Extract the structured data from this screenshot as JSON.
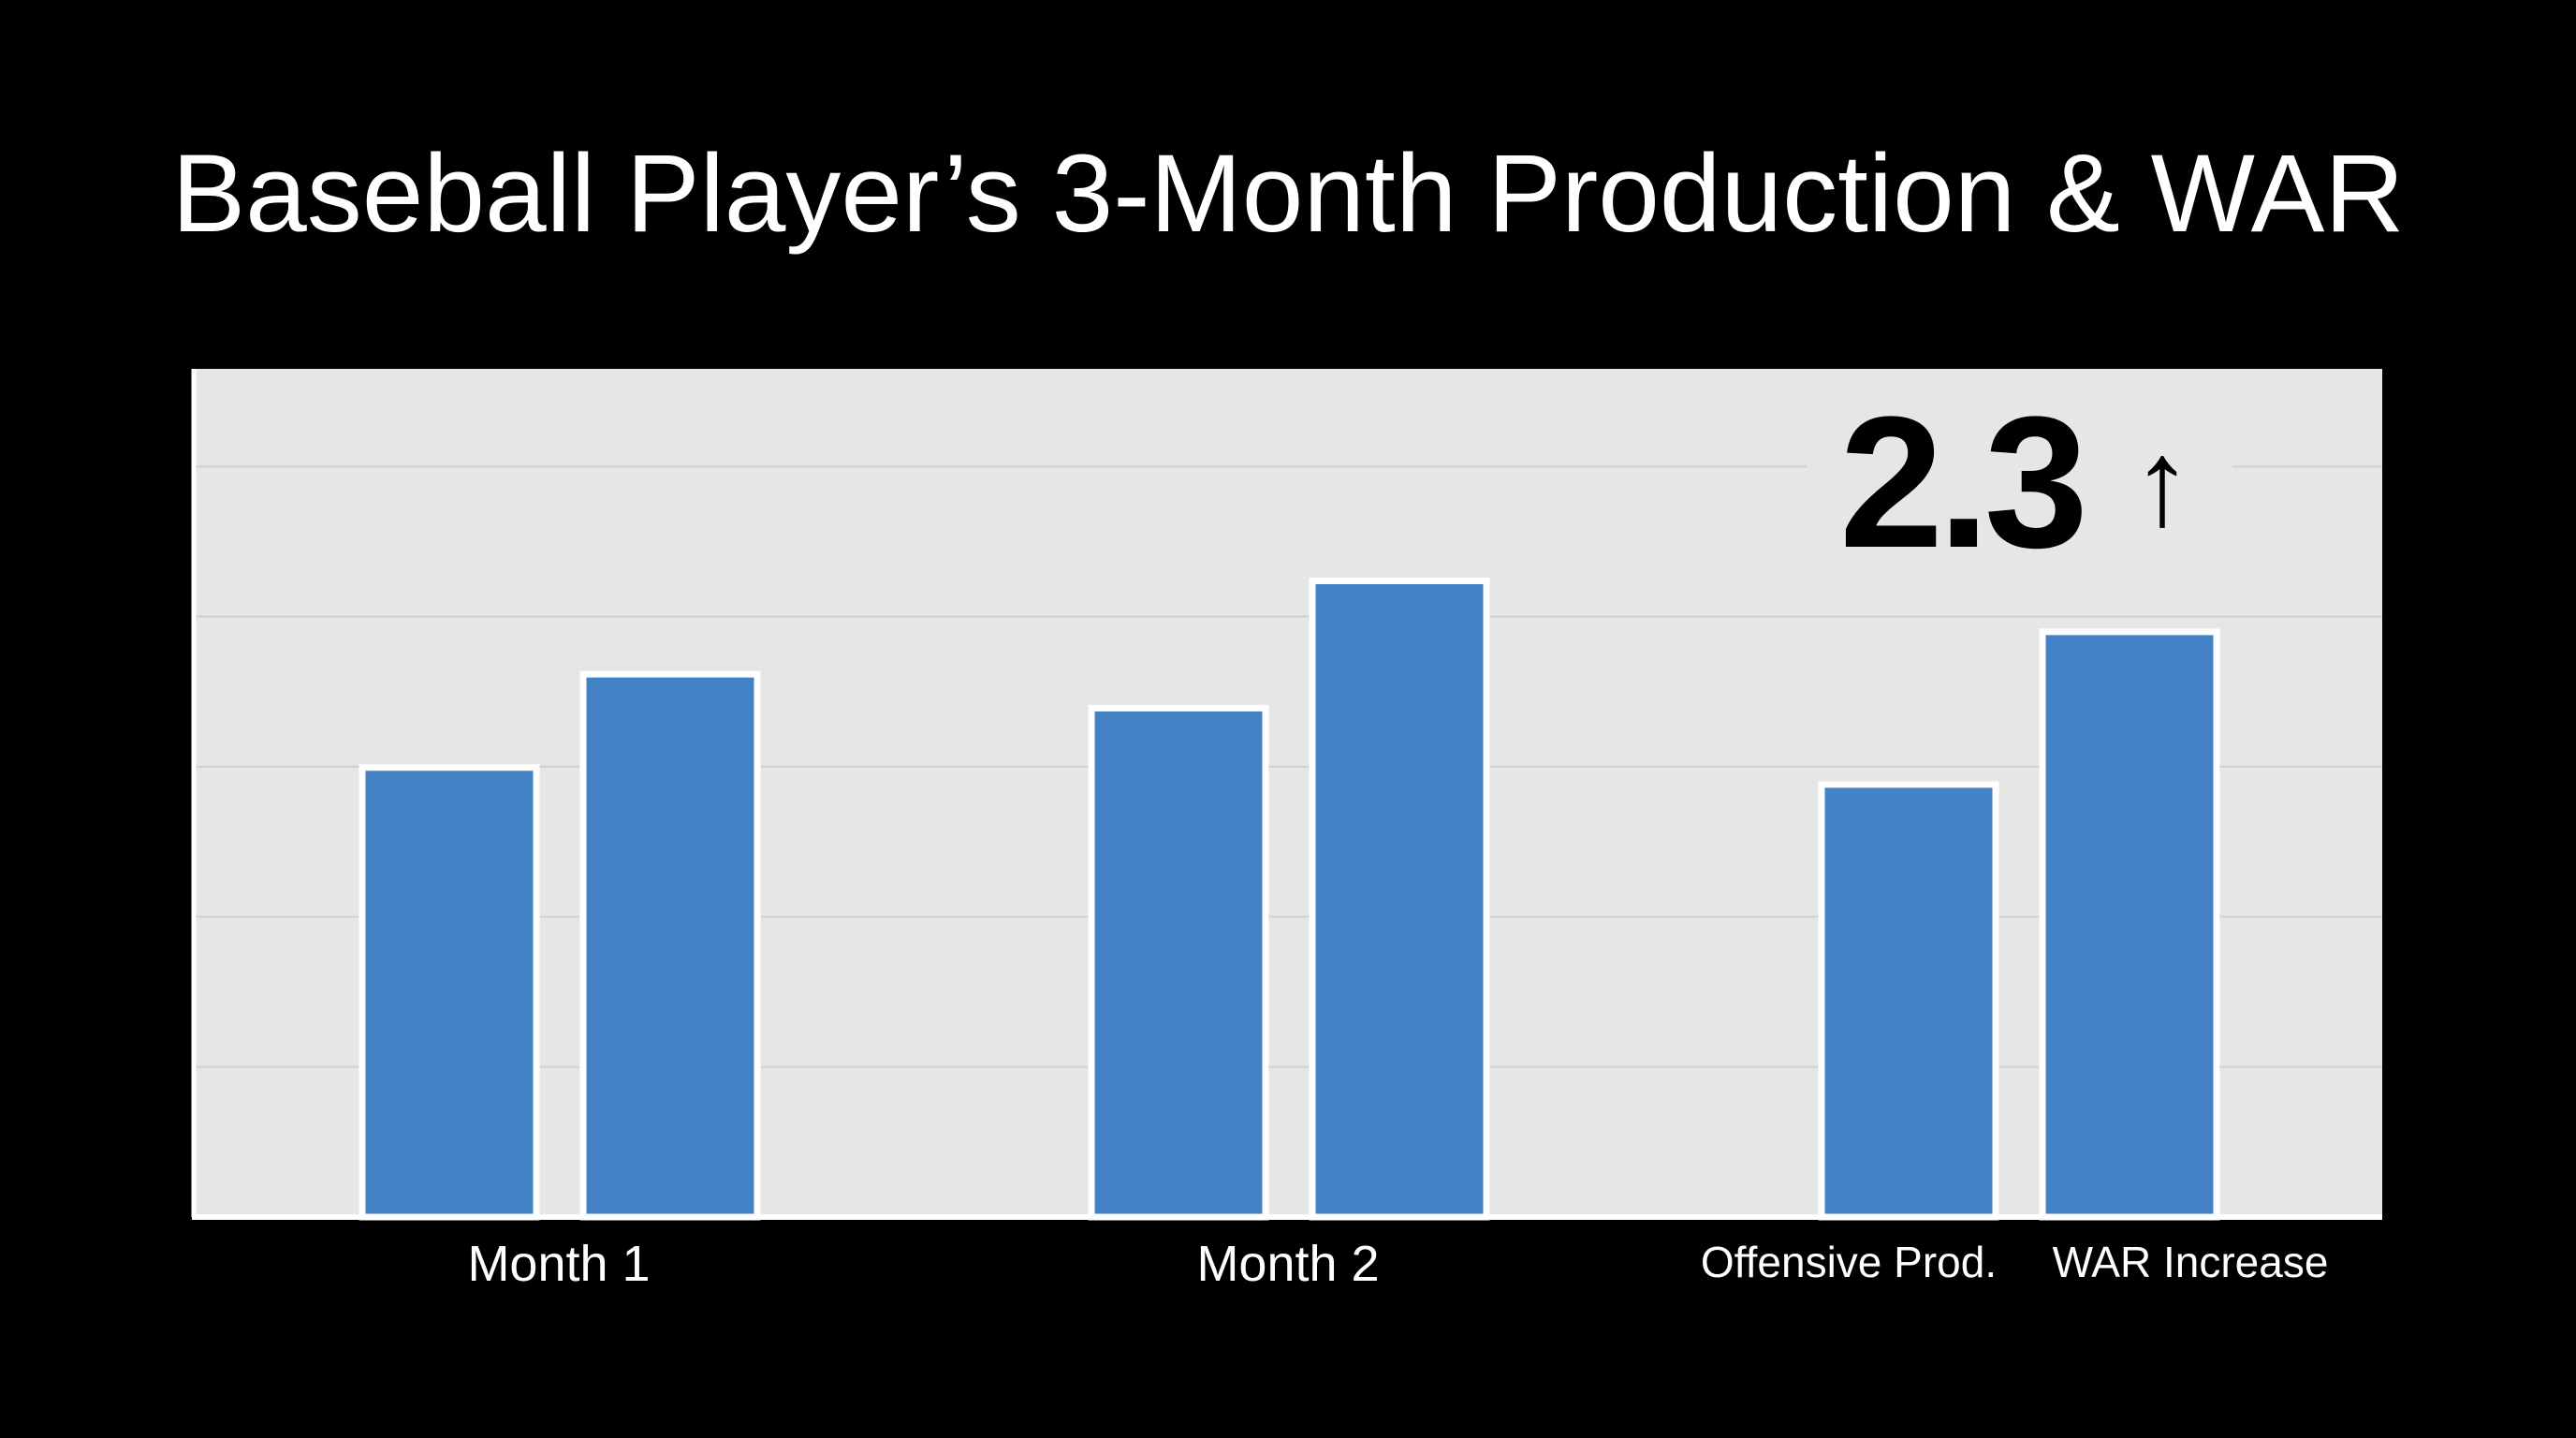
{
  "chart_data": {
    "type": "bar",
    "title": "Baseball Player’s 3-Month Production & WAR",
    "categories": [
      "Month 1",
      "Month 2",
      ""
    ],
    "series": [
      {
        "name": "Offensive Prod.",
        "values": [
          53,
          60,
          51
        ]
      },
      {
        "name": "WAR Increase",
        "values": [
          64,
          75,
          69
        ]
      }
    ],
    "ylim": [
      0,
      100
    ],
    "grid": true,
    "legend_placement": "bottom-right",
    "annotation": {
      "text": "2.3",
      "arrow": "↑",
      "series": "WAR Increase",
      "category_index": 2
    },
    "colors": {
      "background": "#000000",
      "plot_background": "#e6e6e6",
      "bar": "#4382c4",
      "bar_outline": "#ffffff",
      "gridline": "#d0d0d0",
      "text": "#ffffff",
      "annotation_text": "#000000"
    }
  }
}
